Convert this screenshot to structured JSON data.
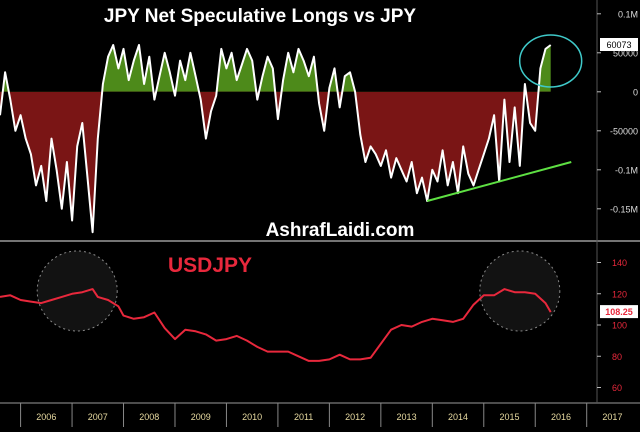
{
  "chart_data": [
    {
      "type": "area",
      "title": "JPY Net Speculative Longs vs JPY",
      "watermark": "AshrafLaidi.com",
      "x_range": [
        2005.6,
        2017.2
      ],
      "ylim": [
        -190000,
        110000
      ],
      "y_ticks": [
        {
          "value": 100000,
          "label": "0.1M"
        },
        {
          "value": 50000,
          "label": "50000"
        },
        {
          "value": 0,
          "label": "0"
        },
        {
          "value": -50000,
          "label": "-50000"
        },
        {
          "value": -100000,
          "label": "-0.1M"
        },
        {
          "value": -150000,
          "label": "-0.15M"
        }
      ],
      "last_value_label": "60073",
      "colors": {
        "positive_fill": "#4d8a1a",
        "negative_fill": "#7a1515",
        "line": "#ffffff",
        "trendline": "#5ee043",
        "highlight_circle": "#3fc9c9"
      },
      "series": [
        {
          "x": [
            2005.6,
            2005.7,
            2005.8,
            2005.9,
            2006.0,
            2006.1,
            2006.2,
            2006.3,
            2006.4,
            2006.5,
            2006.6,
            2006.7,
            2006.8,
            2006.9,
            2007.0,
            2007.1,
            2007.2,
            2007.3,
            2007.4,
            2007.5,
            2007.6,
            2007.7,
            2007.8,
            2007.9,
            2008.0,
            2008.1,
            2008.2,
            2008.3,
            2008.4,
            2008.5,
            2008.6,
            2008.7,
            2008.8,
            2008.9,
            2009.0,
            2009.1,
            2009.2,
            2009.3,
            2009.4,
            2009.5,
            2009.6,
            2009.7,
            2009.8,
            2009.9,
            2010.0,
            2010.1,
            2010.2,
            2010.3,
            2010.4,
            2010.5,
            2010.6,
            2010.7,
            2010.8,
            2010.9,
            2011.0,
            2011.1,
            2011.2,
            2011.3,
            2011.4,
            2011.5,
            2011.6,
            2011.7,
            2011.8,
            2011.9,
            2012.0,
            2012.1,
            2012.2,
            2012.3,
            2012.4,
            2012.5,
            2012.6,
            2012.7,
            2012.8,
            2012.9,
            2013.0,
            2013.1,
            2013.2,
            2013.3,
            2013.4,
            2013.5,
            2013.6,
            2013.7,
            2013.8,
            2013.9,
            2014.0,
            2014.1,
            2014.2,
            2014.3,
            2014.4,
            2014.5,
            2014.6,
            2014.7,
            2014.8,
            2014.9,
            2015.0,
            2015.1,
            2015.2,
            2015.3,
            2015.4,
            2015.5,
            2015.6,
            2015.7,
            2015.8,
            2015.9,
            2016.0,
            2016.1,
            2016.2,
            2016.3
          ],
          "y": [
            -30000,
            25000,
            -10000,
            -50000,
            -30000,
            -60000,
            -80000,
            -120000,
            -95000,
            -140000,
            -60000,
            -100000,
            -150000,
            -90000,
            -165000,
            -70000,
            -40000,
            -110000,
            -180000,
            -60000,
            10000,
            45000,
            60000,
            30000,
            55000,
            15000,
            40000,
            60000,
            10000,
            45000,
            -10000,
            20000,
            50000,
            25000,
            -5000,
            40000,
            15000,
            50000,
            20000,
            -10000,
            -60000,
            -25000,
            -5000,
            55000,
            30000,
            50000,
            15000,
            35000,
            55000,
            40000,
            -10000,
            20000,
            45000,
            30000,
            -35000,
            15000,
            50000,
            25000,
            55000,
            40000,
            20000,
            45000,
            -15000,
            -50000,
            5000,
            30000,
            -20000,
            20000,
            25000,
            0,
            -55000,
            -90000,
            -70000,
            -80000,
            -95000,
            -75000,
            -110000,
            -85000,
            -100000,
            -115000,
            -90000,
            -130000,
            -110000,
            -140000,
            -100000,
            -115000,
            -75000,
            -120000,
            -90000,
            -130000,
            -70000,
            -105000,
            -120000,
            -100000,
            -80000,
            -60000,
            -30000,
            -115000,
            -10000,
            -90000,
            -20000,
            -95000,
            10000,
            -40000,
            -50000,
            30000,
            55000,
            60000
          ]
        }
      ],
      "trendline": {
        "from": [
          2013.9,
          -140000
        ],
        "to": [
          2016.7,
          -90000
        ]
      }
    },
    {
      "type": "line",
      "title": "USDJPY",
      "x_range": [
        2005.6,
        2017.2
      ],
      "ylim": [
        52,
        148
      ],
      "y_ticks": [
        {
          "value": 140,
          "label": "140"
        },
        {
          "value": 120,
          "label": "120"
        },
        {
          "value": 100,
          "label": "100"
        },
        {
          "value": 80,
          "label": "80"
        },
        {
          "value": 60,
          "label": "60"
        }
      ],
      "last_value_label": "108.25",
      "colors": {
        "line": "#e8283c",
        "title": "#e8283c"
      },
      "series": [
        {
          "x": [
            2005.6,
            2005.8,
            2006.0,
            2006.2,
            2006.4,
            2006.6,
            2006.8,
            2007.0,
            2007.2,
            2007.4,
            2007.5,
            2007.7,
            2007.9,
            2008.0,
            2008.2,
            2008.4,
            2008.6,
            2008.8,
            2009.0,
            2009.2,
            2009.4,
            2009.6,
            2009.8,
            2010.0,
            2010.2,
            2010.4,
            2010.6,
            2010.8,
            2011.0,
            2011.2,
            2011.4,
            2011.6,
            2011.8,
            2012.0,
            2012.2,
            2012.4,
            2012.6,
            2012.8,
            2013.0,
            2013.2,
            2013.4,
            2013.6,
            2013.8,
            2014.0,
            2014.2,
            2014.4,
            2014.6,
            2014.8,
            2015.0,
            2015.2,
            2015.4,
            2015.6,
            2015.8,
            2016.0,
            2016.2,
            2016.3
          ],
          "y": [
            118,
            119,
            116,
            115,
            114,
            116,
            118,
            120,
            121,
            123,
            118,
            116,
            112,
            106,
            104,
            105,
            108,
            98,
            91,
            97,
            96,
            94,
            90,
            91,
            93,
            90,
            86,
            83,
            83,
            83,
            80,
            77,
            77,
            78,
            81,
            78,
            78,
            79,
            88,
            97,
            100,
            99,
            102,
            104,
            103,
            102,
            104,
            113,
            119,
            119,
            123,
            121,
            121,
            120,
            114,
            108.25
          ]
        }
      ],
      "highlight_circle_years": [
        2007.1,
        2015.7
      ]
    }
  ],
  "x_axis": {
    "labels": [
      "2006",
      "2007",
      "2008",
      "2009",
      "2010",
      "2011",
      "2012",
      "2013",
      "2014",
      "2015",
      "2016",
      "2017"
    ]
  }
}
